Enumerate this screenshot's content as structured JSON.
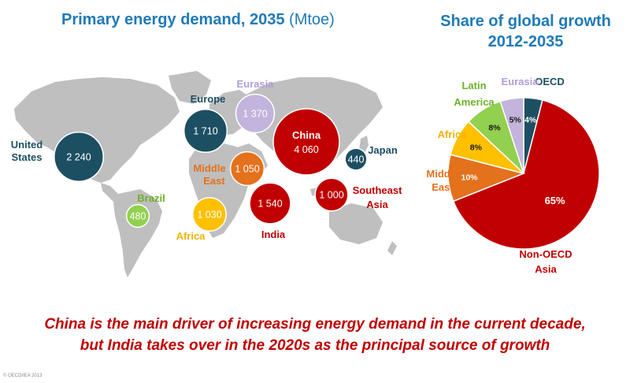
{
  "title": "Primary energy demand, 2035",
  "title_unit": "(Mtoe)",
  "share_title_line1": "Share of global growth",
  "share_title_line2": "2012-2035",
  "caption_line1": "China is the main driver of increasing energy demand in the current decade,",
  "caption_line2": "but India takes over in the 2020s as the principal source of growth",
  "copyright": "© OECD/IEA 2013",
  "colors": {
    "title_blue": "#1f7ab8",
    "dark_teal": "#1d4f63",
    "lavender": "#c2b4dd",
    "dark_red": "#c00000",
    "orange": "#e4711c",
    "yellow": "#ffc000",
    "green": "#92d050",
    "map_gray": "#bfbfbf"
  },
  "chart_data": [
    {
      "type": "scatter",
      "title": "Primary energy demand, 2035",
      "unit": "Mtoe",
      "regions": [
        {
          "name": "United States",
          "value": "2 240",
          "value_num": 2240,
          "color": "#1d4f63",
          "label_color": "#1d4f63"
        },
        {
          "name": "Europe",
          "value": "1 710",
          "value_num": 1710,
          "color": "#1d4f63",
          "label_color": "#1d4f63"
        },
        {
          "name": "Eurasia",
          "value": "1 370",
          "value_num": 1370,
          "color": "#c2b4dd",
          "label_color": "#b09ed6"
        },
        {
          "name": "China",
          "value": "4 060",
          "value_num": 4060,
          "color": "#c00000",
          "label_color": "#c00000"
        },
        {
          "name": "Japan",
          "value": "440",
          "value_num": 440,
          "color": "#1d4f63",
          "label_color": "#1d4f63"
        },
        {
          "name": "Middle East",
          "value": "1 050",
          "value_num": 1050,
          "color": "#e4711c",
          "label_color": "#e4711c"
        },
        {
          "name": "Brazil",
          "value": "480",
          "value_num": 480,
          "color": "#92d050",
          "label_color": "#6fb02a"
        },
        {
          "name": "Africa",
          "value": "1 030",
          "value_num": 1030,
          "color": "#ffc000",
          "label_color": "#f0b400"
        },
        {
          "name": "India",
          "value": "1 540",
          "value_num": 1540,
          "color": "#c00000",
          "label_color": "#c00000"
        },
        {
          "name": "Southeast Asia",
          "value": "1 000",
          "value_num": 1000,
          "color": "#c00000",
          "label_color": "#c00000"
        }
      ]
    },
    {
      "type": "pie",
      "title": "Share of global growth 2012-2035",
      "slices": [
        {
          "label": "OECD",
          "value": 4,
          "value_label": "4%",
          "color": "#1d4f63",
          "label_color": "#1d4f63"
        },
        {
          "label": "Non-OECD Asia",
          "value": 65,
          "value_label": "65%",
          "color": "#c00000",
          "label_color": "#c00000"
        },
        {
          "label": "Middle East",
          "value": 10,
          "value_label": "10%",
          "color": "#e4711c",
          "label_color": "#e4711c"
        },
        {
          "label": "Africa",
          "value": 8,
          "value_label": "8%",
          "color": "#ffc000",
          "label_color": "#f0b400"
        },
        {
          "label": "Latin America",
          "value": 8,
          "value_label": "8%",
          "color": "#92d050",
          "label_color": "#6fb02a"
        },
        {
          "label": "Eurasia",
          "value": 5,
          "value_label": "5%",
          "color": "#c2b4dd",
          "label_color": "#b09ed6"
        }
      ]
    }
  ]
}
